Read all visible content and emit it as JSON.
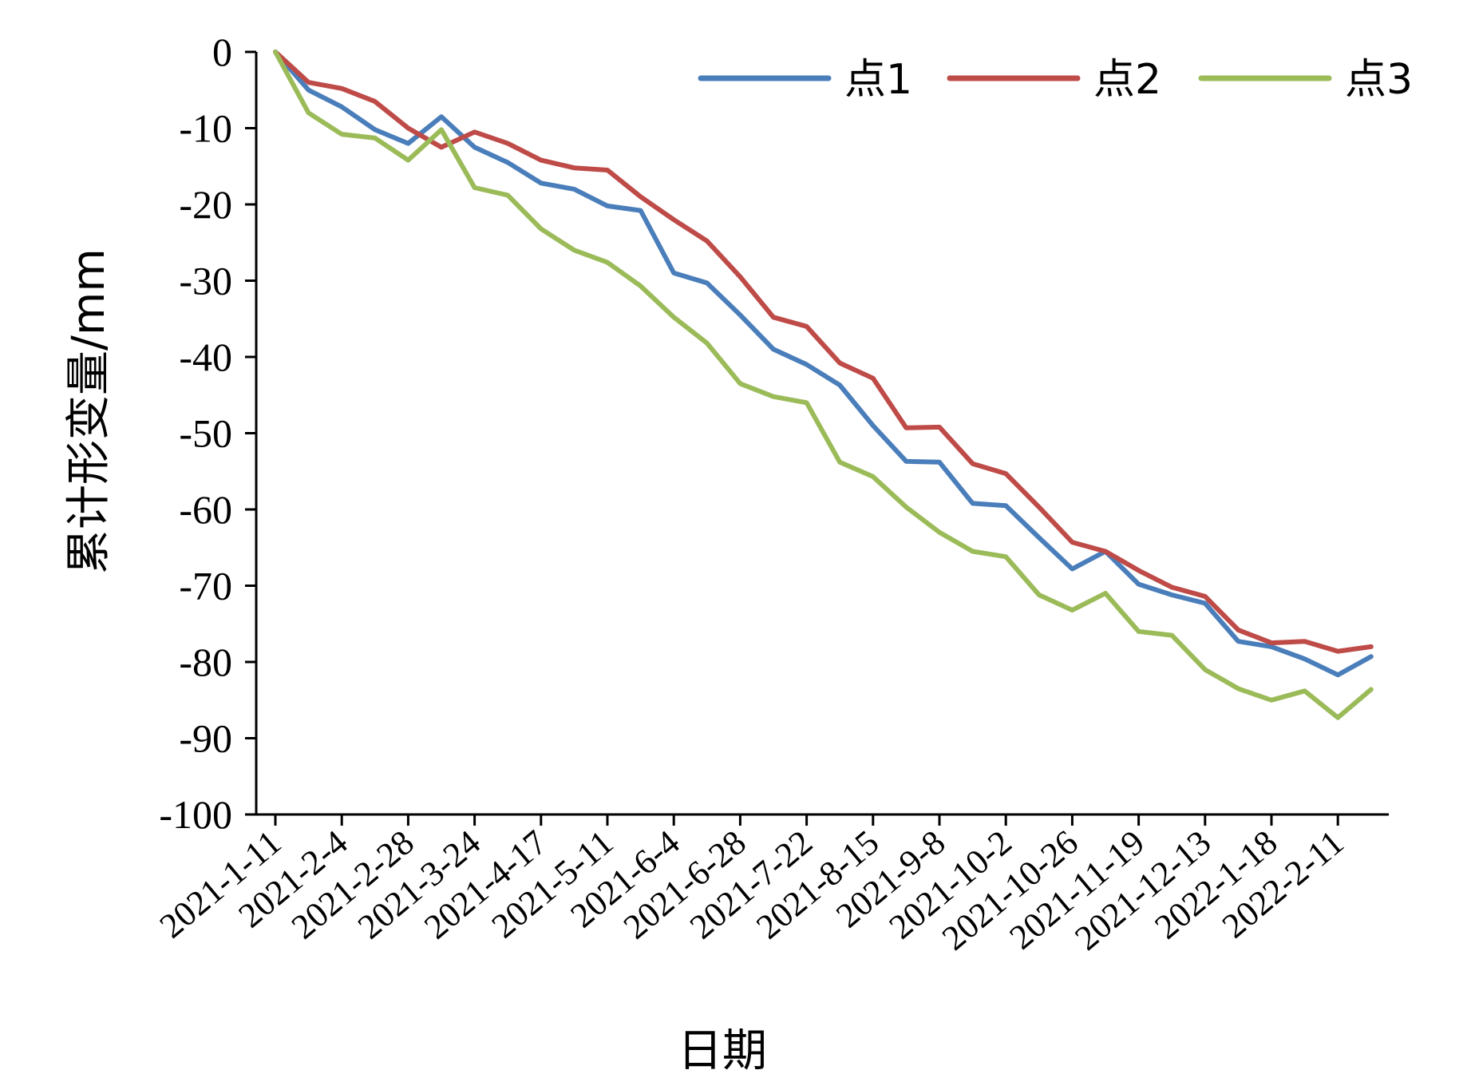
{
  "chart_data": {
    "type": "line",
    "xlabel": "日期",
    "ylabel": "累计形变量/mm",
    "ylim": [
      -100,
      0
    ],
    "yticks": [
      0,
      -10,
      -20,
      -30,
      -40,
      -50,
      -60,
      -70,
      -80,
      -90,
      -100
    ],
    "ytick_labels": [
      "0",
      "-10",
      "-20",
      "-30",
      "-40",
      "-50",
      "-60",
      "-70",
      "-80",
      "-90",
      "-100"
    ],
    "x_count": 34,
    "xtick_index": [
      0,
      2,
      4,
      6,
      8,
      10,
      12,
      14,
      16,
      18,
      20,
      22,
      24,
      26,
      28,
      30,
      32
    ],
    "xtick_labels": [
      "2021-1-11",
      "2021-2-4",
      "2021-2-28",
      "2021-3-24",
      "2021-4-17",
      "2021-5-11",
      "2021-6-4",
      "2021-6-28",
      "2021-7-22",
      "2021-8-15",
      "2021-9-8",
      "2021-10-2",
      "2021-10-26",
      "2021-11-19",
      "2021-12-13",
      "2022-1-18",
      "2022-2-11"
    ],
    "legend_position": "top-right",
    "grid": false,
    "series": [
      {
        "name": "点1",
        "color": "#4A7EBB",
        "values": [
          0,
          -5,
          -7.2,
          -10.2,
          -12,
          -8.5,
          -12.5,
          -14.5,
          -17.2,
          -18,
          -20.2,
          -20.8,
          -29,
          -30.3,
          -34.5,
          -39,
          -41,
          -43.7,
          -49,
          -53.7,
          -53.8,
          -59.2,
          -59.5,
          -63.7,
          -67.8,
          -65.5,
          -69.8,
          -71.2,
          -72.3,
          -77.3,
          -78,
          -79.6,
          -81.7,
          -79.3
        ]
      },
      {
        "name": "点2",
        "color": "#BE4B48",
        "values": [
          0,
          -4,
          -4.8,
          -6.5,
          -10,
          -12.5,
          -10.5,
          -12,
          -14.2,
          -15.2,
          -15.5,
          -19,
          -22,
          -24.8,
          -29.5,
          -34.8,
          -36,
          -40.8,
          -42.8,
          -49.3,
          -49.2,
          -54,
          -55.3,
          -59.7,
          -64.3,
          -65.5,
          -68,
          -70.2,
          -71.4,
          -75.8,
          -77.5,
          -77.3,
          -78.6,
          -78
        ]
      },
      {
        "name": "点3",
        "color": "#9BBB59",
        "values": [
          0,
          -8,
          -10.8,
          -11.3,
          -14.2,
          -10.2,
          -17.8,
          -18.8,
          -23.2,
          -26,
          -27.6,
          -30.7,
          -34.8,
          -38.2,
          -43.5,
          -45.2,
          -46,
          -53.8,
          -55.7,
          -59.7,
          -63,
          -65.5,
          -66.2,
          -71.2,
          -73.2,
          -71,
          -76,
          -76.5,
          -81,
          -83.5,
          -85,
          -83.8,
          -87.3,
          -83.6
        ]
      }
    ]
  }
}
